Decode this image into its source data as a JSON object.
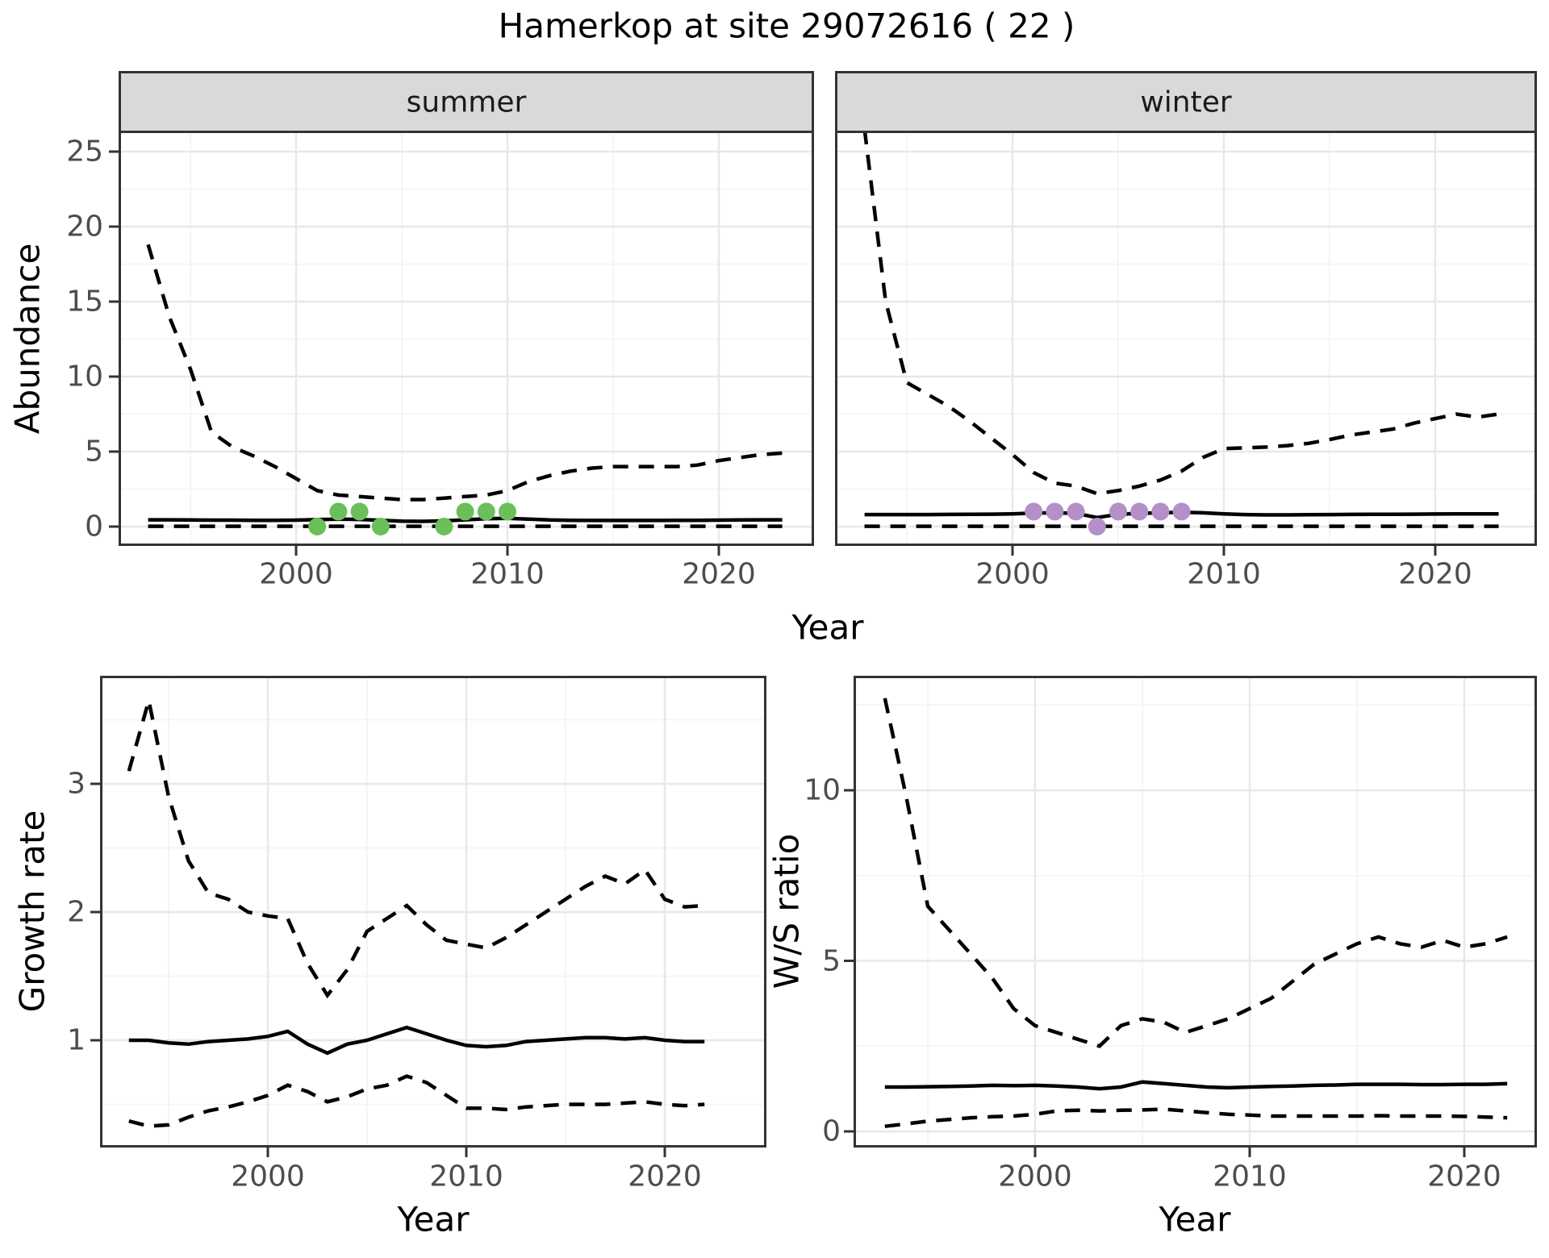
{
  "title": "Hamerkop at site 29072616 ( 22 )",
  "colors": {
    "summer_points": "#6bbf5a",
    "winter_points": "#b48fc8",
    "line": "#000000",
    "strip_bg": "#d9d9d9",
    "panel_border": "#333333",
    "grid_major": "#e8e8e8",
    "grid_minor": "#f4f4f4",
    "axis_text": "#4d4d4d"
  },
  "facets": {
    "summer": "summer",
    "winter": "winter"
  },
  "axes": {
    "abundance": {
      "label": "Abundance",
      "x_label": "Year",
      "y_ticks": [
        0,
        5,
        10,
        15,
        20,
        25
      ],
      "x_ticks": [
        2000,
        2010,
        2020
      ]
    },
    "growth": {
      "label": "Growth rate",
      "x_label": "Year",
      "y_ticks": [
        1,
        2,
        3
      ],
      "x_ticks": [
        2000,
        2010,
        2020
      ]
    },
    "ws": {
      "label": "W/S ratio",
      "x_label": "Year",
      "y_ticks": [
        0,
        5,
        10
      ],
      "x_ticks": [
        2000,
        2010,
        2020
      ]
    }
  },
  "chart_data": [
    {
      "id": "abundance_summer",
      "type": "line",
      "facet": "summer",
      "xlabel": "Year",
      "ylabel": "Abundance",
      "ylim": [
        0,
        25
      ],
      "xticks": [
        2000,
        2010,
        2020
      ],
      "yticks": [
        0,
        5,
        10,
        15,
        20,
        25
      ],
      "grid": true,
      "x": [
        1993,
        1994,
        1995,
        1996,
        1997,
        1998,
        1999,
        2000,
        2001,
        2002,
        2003,
        2004,
        2005,
        2006,
        2007,
        2008,
        2009,
        2010,
        2011,
        2012,
        2013,
        2014,
        2015,
        2016,
        2017,
        2018,
        2019,
        2020,
        2021,
        2022,
        2023
      ],
      "series": [
        {
          "name": "median",
          "style": "solid",
          "values": [
            0.45,
            0.45,
            0.44,
            0.43,
            0.43,
            0.42,
            0.42,
            0.43,
            0.46,
            0.5,
            0.48,
            0.42,
            0.36,
            0.35,
            0.38,
            0.45,
            0.52,
            0.55,
            0.5,
            0.44,
            0.42,
            0.41,
            0.41,
            0.41,
            0.41,
            0.42,
            0.42,
            0.43,
            0.44,
            0.45,
            0.45
          ]
        },
        {
          "name": "upper_ci",
          "style": "dashed",
          "values": [
            18.8,
            14,
            10.5,
            6.3,
            5.3,
            4.7,
            4,
            3.2,
            2.4,
            2.1,
            2,
            1.9,
            1.8,
            1.8,
            1.9,
            2,
            2.1,
            2.4,
            3,
            3.4,
            3.7,
            3.9,
            4,
            4,
            4,
            4,
            4.1,
            4.4,
            4.6,
            4.8,
            4.9
          ]
        },
        {
          "name": "lower_ci",
          "style": "dashed",
          "values": [
            0.02,
            0.02,
            0.02,
            0.02,
            0.02,
            0.02,
            0.02,
            0.02,
            0.02,
            0.02,
            0.02,
            0.02,
            0.02,
            0.02,
            0.02,
            0.02,
            0.02,
            0.02,
            0.02,
            0.02,
            0.02,
            0.02,
            0.02,
            0.02,
            0.02,
            0.02,
            0.02,
            0.02,
            0.02,
            0.02,
            0.02
          ]
        }
      ],
      "observations": {
        "color": "#6bbf5a",
        "points": [
          [
            2001,
            0
          ],
          [
            2002,
            1
          ],
          [
            2003,
            1
          ],
          [
            2004,
            0
          ],
          [
            2007,
            0
          ],
          [
            2008,
            1
          ],
          [
            2009,
            1
          ],
          [
            2010,
            1
          ]
        ]
      }
    },
    {
      "id": "abundance_winter",
      "type": "line",
      "facet": "winter",
      "xlabel": "Year",
      "ylabel": "Abundance",
      "ylim": [
        0,
        25
      ],
      "xticks": [
        2000,
        2010,
        2020
      ],
      "yticks": [
        0,
        5,
        10,
        15,
        20,
        25
      ],
      "grid": true,
      "x": [
        1993,
        1994,
        1995,
        1996,
        1997,
        1998,
        1999,
        2000,
        2001,
        2002,
        2003,
        2004,
        2005,
        2006,
        2007,
        2008,
        2009,
        2010,
        2011,
        2012,
        2013,
        2014,
        2015,
        2016,
        2017,
        2018,
        2019,
        2020,
        2021,
        2022,
        2023
      ],
      "series": [
        {
          "name": "median",
          "style": "solid",
          "values": [
            0.8,
            0.8,
            0.8,
            0.8,
            0.81,
            0.82,
            0.83,
            0.85,
            0.9,
            0.92,
            0.88,
            0.6,
            0.82,
            0.88,
            0.92,
            0.95,
            0.92,
            0.85,
            0.8,
            0.78,
            0.78,
            0.79,
            0.8,
            0.81,
            0.82,
            0.82,
            0.83,
            0.84,
            0.85,
            0.85,
            0.85
          ]
        },
        {
          "name": "upper_ci",
          "style": "dashed",
          "values": [
            26.5,
            15,
            9.6,
            8.8,
            8,
            7,
            5.9,
            4.8,
            3.6,
            2.9,
            2.7,
            2.2,
            2.4,
            2.7,
            3.1,
            3.7,
            4.6,
            5.2,
            5.25,
            5.3,
            5.4,
            5.55,
            5.8,
            6.1,
            6.3,
            6.5,
            6.9,
            7.2,
            7.5,
            7.3,
            7.5
          ]
        },
        {
          "name": "lower_ci",
          "style": "dashed",
          "values": [
            0.02,
            0.02,
            0.02,
            0.02,
            0.02,
            0.02,
            0.02,
            0.02,
            0.02,
            0.02,
            0.02,
            0.02,
            0.02,
            0.02,
            0.02,
            0.02,
            0.02,
            0.02,
            0.02,
            0.02,
            0.02,
            0.02,
            0.02,
            0.02,
            0.02,
            0.02,
            0.02,
            0.02,
            0.02,
            0.02,
            0.02
          ]
        }
      ],
      "observations": {
        "color": "#b48fc8",
        "points": [
          [
            2001,
            1
          ],
          [
            2002,
            1
          ],
          [
            2003,
            1
          ],
          [
            2004,
            0
          ],
          [
            2005,
            1
          ],
          [
            2006,
            1
          ],
          [
            2007,
            1
          ],
          [
            2008,
            1
          ]
        ]
      }
    },
    {
      "id": "growth_rate",
      "type": "line",
      "xlabel": "Year",
      "ylabel": "Growth rate",
      "ylim": [
        0.18,
        3.84
      ],
      "xticks": [
        2000,
        2010,
        2020
      ],
      "yticks": [
        1,
        2,
        3
      ],
      "grid": true,
      "x": [
        1993,
        1994,
        1995,
        1996,
        1997,
        1998,
        1999,
        2000,
        2001,
        2002,
        2003,
        2004,
        2005,
        2006,
        2007,
        2008,
        2009,
        2010,
        2011,
        2012,
        2013,
        2014,
        2015,
        2016,
        2017,
        2018,
        2019,
        2020,
        2021,
        2022
      ],
      "series": [
        {
          "name": "median",
          "style": "solid",
          "values": [
            1,
            1,
            0.98,
            0.97,
            0.99,
            1,
            1.01,
            1.03,
            1.07,
            0.97,
            0.9,
            0.97,
            1,
            1.05,
            1.1,
            1.05,
            1,
            0.96,
            0.95,
            0.96,
            0.99,
            1,
            1.01,
            1.02,
            1.02,
            1.01,
            1.02,
            1,
            0.99,
            0.99
          ]
        },
        {
          "name": "upper_ci",
          "style": "dashed",
          "values": [
            3.1,
            3.65,
            2.9,
            2.4,
            2.15,
            2.1,
            2,
            1.97,
            1.95,
            1.6,
            1.35,
            1.55,
            1.85,
            1.95,
            2.05,
            1.9,
            1.78,
            1.75,
            1.72,
            1.8,
            1.9,
            2,
            2.1,
            2.2,
            2.28,
            2.22,
            2.33,
            2.1,
            2.04,
            2.05
          ]
        },
        {
          "name": "lower_ci",
          "style": "dashed",
          "values": [
            0.37,
            0.33,
            0.34,
            0.4,
            0.45,
            0.48,
            0.52,
            0.57,
            0.65,
            0.6,
            0.52,
            0.56,
            0.62,
            0.65,
            0.72,
            0.67,
            0.57,
            0.47,
            0.47,
            0.46,
            0.48,
            0.49,
            0.5,
            0.5,
            0.5,
            0.51,
            0.52,
            0.5,
            0.49,
            0.5
          ]
        }
      ]
    },
    {
      "id": "ws_ratio",
      "type": "line",
      "xlabel": "Year",
      "ylabel": "W/S ratio",
      "ylim": [
        -0.5,
        13.3
      ],
      "xticks": [
        2000,
        2010,
        2020
      ],
      "yticks": [
        0,
        5,
        10
      ],
      "grid": true,
      "x": [
        1993,
        1994,
        1995,
        1996,
        1997,
        1998,
        1999,
        2000,
        2001,
        2002,
        2003,
        2004,
        2005,
        2006,
        2007,
        2008,
        2009,
        2010,
        2011,
        2012,
        2013,
        2014,
        2015,
        2016,
        2017,
        2018,
        2019,
        2020,
        2021,
        2022
      ],
      "series": [
        {
          "name": "median",
          "style": "solid",
          "values": [
            1.3,
            1.3,
            1.31,
            1.32,
            1.33,
            1.35,
            1.34,
            1.35,
            1.33,
            1.3,
            1.25,
            1.3,
            1.45,
            1.4,
            1.35,
            1.3,
            1.28,
            1.3,
            1.32,
            1.33,
            1.35,
            1.36,
            1.38,
            1.38,
            1.38,
            1.37,
            1.37,
            1.38,
            1.38,
            1.4
          ]
        },
        {
          "name": "upper_ci",
          "style": "dashed",
          "values": [
            12.7,
            9.8,
            6.6,
            5.9,
            5.2,
            4.5,
            3.6,
            3.1,
            2.9,
            2.7,
            2.5,
            3.1,
            3.3,
            3.2,
            2.9,
            3.1,
            3.3,
            3.6,
            3.9,
            4.4,
            4.9,
            5.2,
            5.5,
            5.7,
            5.5,
            5.4,
            5.6,
            5.4,
            5.5,
            5.7
          ]
        },
        {
          "name": "lower_ci",
          "style": "dashed",
          "values": [
            0.15,
            0.22,
            0.3,
            0.35,
            0.4,
            0.43,
            0.45,
            0.5,
            0.6,
            0.62,
            0.6,
            0.62,
            0.63,
            0.65,
            0.6,
            0.55,
            0.5,
            0.48,
            0.45,
            0.45,
            0.45,
            0.45,
            0.45,
            0.46,
            0.45,
            0.45,
            0.45,
            0.44,
            0.42,
            0.4
          ]
        }
      ]
    }
  ]
}
